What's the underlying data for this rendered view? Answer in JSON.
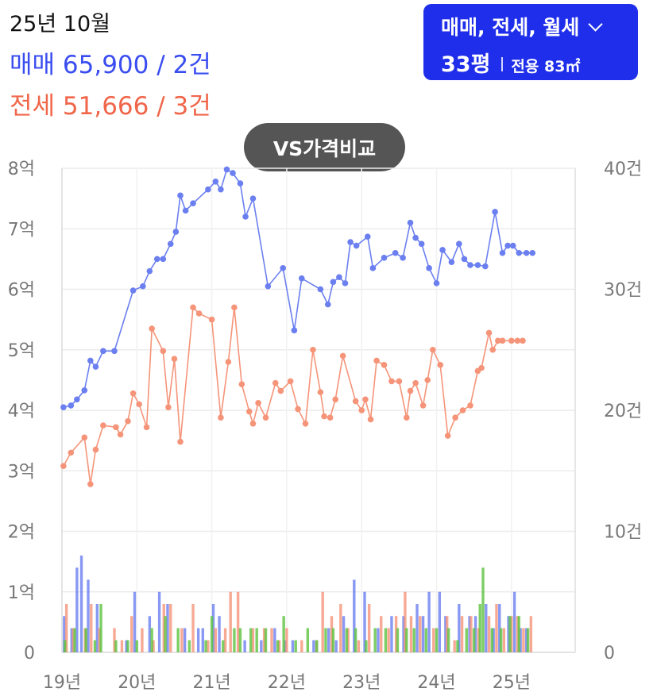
{
  "header": {
    "date": "25년 10월",
    "sale_summary": "매매 65,900 / 2건",
    "jeonse_summary": "전세 51,666 / 3건"
  },
  "filter": {
    "types": "매매, 전세, 월세",
    "pyeong": "33평",
    "area": "전용 83㎡"
  },
  "compare_button": "VS가격비교",
  "colors": {
    "sale": "#6b7ff0",
    "jeonse": "#f59479",
    "monthly": "#5cc23e",
    "button": "#1f2eea"
  },
  "chart_data": {
    "type": "line",
    "x_tick_labels": [
      "19년",
      "20년",
      "21년",
      "22년",
      "23년",
      "24년",
      "25년"
    ],
    "x_tick_years": [
      2019,
      2020,
      2021,
      2022,
      2023,
      2024,
      2025
    ],
    "x_range": [
      2019.0,
      2025.85
    ],
    "y_left_tick_labels": [
      "0",
      "1억",
      "2억",
      "3억",
      "4억",
      "5억",
      "6억",
      "7억",
      "8억"
    ],
    "y_left_range": [
      0,
      8
    ],
    "y_right_tick_labels": [
      "0",
      "10건",
      "20건",
      "30건",
      "40건"
    ],
    "y_right_range": [
      0,
      40
    ],
    "grid": true,
    "price_series": [
      {
        "name": "매매",
        "color": "#6b7ff0",
        "x": [
          2019.02,
          2019.12,
          2019.2,
          2019.3,
          2019.38,
          2019.45,
          2019.55,
          2019.7,
          2019.95,
          2020.08,
          2020.17,
          2020.27,
          2020.35,
          2020.45,
          2020.52,
          2020.58,
          2020.65,
          2020.75,
          2020.95,
          2021.05,
          2021.12,
          2021.2,
          2021.28,
          2021.38,
          2021.45,
          2021.55,
          2021.75,
          2021.95,
          2022.1,
          2022.2,
          2022.45,
          2022.55,
          2022.62,
          2022.7,
          2022.78,
          2022.85,
          2022.93,
          2023.08,
          2023.15,
          2023.3,
          2023.45,
          2023.55,
          2023.65,
          2023.72,
          2023.8,
          2023.9,
          2024.0,
          2024.08,
          2024.2,
          2024.3,
          2024.37,
          2024.45,
          2024.55,
          2024.65,
          2024.78,
          2024.88,
          2024.95,
          2025.02,
          2025.1,
          2025.2,
          2025.28
        ],
        "y": [
          4.05,
          4.08,
          4.18,
          4.33,
          4.82,
          4.72,
          4.98,
          4.98,
          5.98,
          6.05,
          6.3,
          6.5,
          6.5,
          6.75,
          6.95,
          7.55,
          7.3,
          7.42,
          7.65,
          7.78,
          7.65,
          7.98,
          7.92,
          7.75,
          7.2,
          7.5,
          6.05,
          6.35,
          5.32,
          6.18,
          6.0,
          5.75,
          6.12,
          6.2,
          6.1,
          6.78,
          6.72,
          6.87,
          6.35,
          6.52,
          6.6,
          6.52,
          7.1,
          6.85,
          6.75,
          6.35,
          6.1,
          6.65,
          6.45,
          6.75,
          6.5,
          6.4,
          6.4,
          6.38,
          7.28,
          6.6,
          6.72,
          6.72,
          6.6,
          6.6,
          6.6
        ]
      },
      {
        "name": "전세",
        "color": "#f59479",
        "x": [
          2019.02,
          2019.12,
          2019.3,
          2019.38,
          2019.45,
          2019.55,
          2019.72,
          2019.78,
          2019.88,
          2019.95,
          2020.03,
          2020.13,
          2020.2,
          2020.35,
          2020.42,
          2020.5,
          2020.58,
          2020.75,
          2020.83,
          2021.0,
          2021.12,
          2021.22,
          2021.3,
          2021.4,
          2021.5,
          2021.55,
          2021.62,
          2021.72,
          2021.85,
          2021.92,
          2022.05,
          2022.15,
          2022.25,
          2022.35,
          2022.45,
          2022.5,
          2022.58,
          2022.65,
          2022.75,
          2022.92,
          2023.0,
          2023.05,
          2023.12,
          2023.2,
          2023.3,
          2023.4,
          2023.5,
          2023.6,
          2023.65,
          2023.72,
          2023.82,
          2023.88,
          2023.95,
          2024.05,
          2024.15,
          2024.25,
          2024.35,
          2024.45,
          2024.55,
          2024.6,
          2024.7,
          2024.75,
          2024.82,
          2024.88,
          2025.0,
          2025.08,
          2025.15
        ],
        "y": [
          3.08,
          3.3,
          3.55,
          2.78,
          3.35,
          3.75,
          3.72,
          3.6,
          3.82,
          4.28,
          4.1,
          3.72,
          5.35,
          4.98,
          4.05,
          4.85,
          3.48,
          5.7,
          5.6,
          5.5,
          3.88,
          4.8,
          5.7,
          4.43,
          3.98,
          3.78,
          4.12,
          3.88,
          4.45,
          4.32,
          4.48,
          4.02,
          3.78,
          5.0,
          4.3,
          3.9,
          3.88,
          4.18,
          4.9,
          4.15,
          4.0,
          4.18,
          3.85,
          4.82,
          4.75,
          4.48,
          4.48,
          3.88,
          4.32,
          4.45,
          4.08,
          4.5,
          5.0,
          4.75,
          3.58,
          3.88,
          4.0,
          4.08,
          4.65,
          4.7,
          5.28,
          5.0,
          5.15,
          5.15,
          5.15,
          5.15,
          5.15
        ]
      }
    ],
    "volume_series": [
      {
        "name": "매매",
        "color": "#6b7ff0",
        "x": [
          2019.03,
          2019.13,
          2019.2,
          2019.26,
          2019.35,
          2019.47,
          2019.86,
          2019.97,
          2020.17,
          2020.3,
          2020.41,
          2020.64,
          2020.82,
          2020.88,
          2021.02,
          2021.1,
          2021.44,
          2021.66,
          2021.84,
          2021.98,
          2022.08,
          2022.36,
          2022.56,
          2022.66,
          2022.76,
          2022.9,
          2023.04,
          2023.22,
          2023.4,
          2023.56,
          2023.74,
          2023.82,
          2023.9,
          2024.04,
          2024.12,
          2024.3,
          2024.44,
          2024.52,
          2024.66,
          2024.76,
          2024.84,
          2024.96,
          2025.04,
          2025.12,
          2025.2
        ],
        "y": [
          3,
          2,
          7,
          8,
          6,
          4,
          1,
          5,
          3,
          5,
          4,
          2,
          2,
          2,
          4,
          3,
          1,
          1,
          2,
          1,
          1,
          1,
          2,
          1,
          3,
          6,
          5,
          2,
          3,
          3,
          4,
          3,
          5,
          5,
          3,
          4,
          3,
          3,
          4,
          2,
          4,
          3,
          5,
          2,
          2
        ]
      },
      {
        "name": "전세",
        "color": "#f59479",
        "x": [
          2019.06,
          2019.15,
          2019.31,
          2019.39,
          2019.5,
          2019.7,
          2019.8,
          2019.93,
          2020.07,
          2020.22,
          2020.36,
          2020.45,
          2020.6,
          2020.75,
          2020.95,
          2021.05,
          2021.18,
          2021.25,
          2021.35,
          2021.55,
          2021.7,
          2021.8,
          2021.9,
          2022.0,
          2022.2,
          2022.4,
          2022.48,
          2022.6,
          2022.72,
          2022.82,
          2022.96,
          2023.1,
          2023.26,
          2023.36,
          2023.46,
          2023.58,
          2023.66,
          2023.78,
          2023.96,
          2024.14,
          2024.24,
          2024.34,
          2024.46,
          2024.56,
          2024.7,
          2024.8,
          2024.9,
          2025.0,
          2025.08,
          2025.16,
          2025.26
        ],
        "y": [
          4,
          2,
          2,
          4,
          2,
          2,
          1,
          3,
          2,
          1,
          4,
          4,
          2,
          4,
          1,
          2,
          2,
          5,
          5,
          2,
          2,
          2,
          1,
          2,
          1,
          1,
          5,
          3,
          4,
          2,
          1,
          4,
          3,
          2,
          3,
          5,
          3,
          3,
          2,
          3,
          1,
          3,
          3,
          2,
          3,
          4,
          2,
          3,
          3,
          2,
          3
        ]
      },
      {
        "name": "월세",
        "color": "#5cc23e",
        "x": [
          2019.04,
          2019.17,
          2019.32,
          2019.44,
          2019.52,
          2019.72,
          2019.88,
          2020.0,
          2020.2,
          2020.38,
          2020.55,
          2020.7,
          2020.92,
          2021.0,
          2021.15,
          2021.3,
          2021.38,
          2021.52,
          2021.6,
          2021.72,
          2021.88,
          2021.96,
          2022.12,
          2022.28,
          2022.4,
          2022.52,
          2022.62,
          2022.8,
          2022.92,
          2023.06,
          2023.18,
          2023.32,
          2023.48,
          2023.6,
          2023.7,
          2023.86,
          2024.0,
          2024.16,
          2024.28,
          2024.4,
          2024.5,
          2024.58,
          2024.62,
          2024.74,
          2024.86,
          2024.98,
          2025.1,
          2025.22
        ],
        "y": [
          1,
          2,
          2,
          1,
          4,
          1,
          1,
          1,
          2,
          3,
          2,
          1,
          1,
          3,
          1,
          2,
          2,
          2,
          2,
          2,
          1,
          3,
          1,
          2,
          1,
          2,
          2,
          2,
          2,
          1,
          2,
          2,
          2,
          2,
          2,
          2,
          2,
          2,
          1,
          2,
          2,
          4,
          7,
          2,
          2,
          3,
          3,
          2
        ]
      }
    ]
  }
}
